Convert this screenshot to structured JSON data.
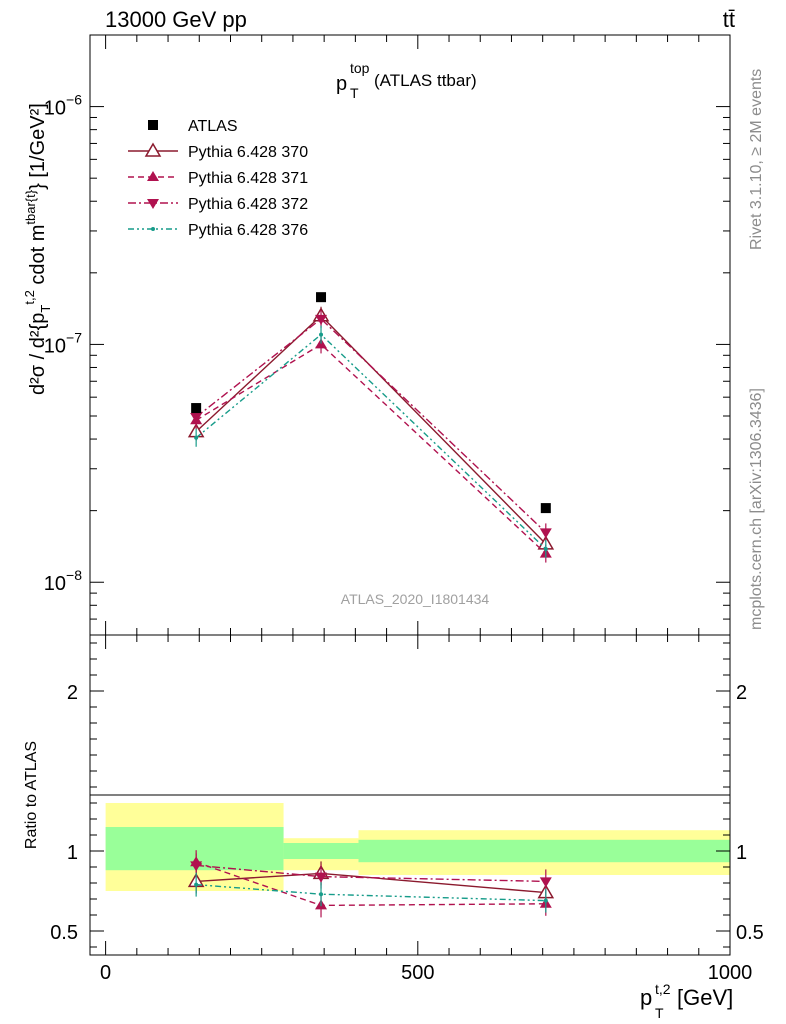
{
  "header": {
    "energy_label": "13000 GeV pp",
    "process_label": "tt̄"
  },
  "side_labels": {
    "rivet": "Rivet 3.1.10, ≥ 2M events",
    "mcplots": "mcplots.cern.ch [arXiv:1306.3436]"
  },
  "chart_data": [
    {
      "type": "scatter",
      "panel": "main",
      "title": {
        "main": "p",
        "sup": "top",
        "sub": "T",
        "suffix": " (ATLAS ttbar)"
      },
      "watermark": "ATLAS_2020_I1801434",
      "ylabel": "d²σ / d²{p_T^{t,2} cdot m^{tbar{t}}} [1/GeV²]",
      "yscale": "log",
      "ylim": [
        6e-09,
        2e-06
      ],
      "y_ticks": [
        {
          "value": 1e-08,
          "base": "10",
          "exp": "−8"
        },
        {
          "value": 1e-07,
          "base": "10",
          "exp": "−7"
        },
        {
          "value": 1e-06,
          "base": "10",
          "exp": "−6"
        }
      ],
      "xlim": [
        -25,
        1000
      ],
      "x": [
        145,
        345,
        705
      ],
      "series": [
        {
          "name": "ATLAS",
          "values": [
            5.4e-08,
            1.58e-07,
            2.05e-08
          ],
          "color": "#000000",
          "marker": "square"
        },
        {
          "name": "Pythia 6.428 370",
          "values": [
            4.3e-08,
            1.32e-07,
            1.45e-08
          ],
          "color": "#8b1a2e",
          "marker": "triangle-open",
          "dash": "solid"
        },
        {
          "name": "Pythia 6.428 371",
          "values": [
            4.8e-08,
            1e-07,
            1.32e-08
          ],
          "color": "#b0124f",
          "marker": "triangle",
          "dash": "dashed"
        },
        {
          "name": "Pythia 6.428 372",
          "values": [
            4.95e-08,
            1.28e-07,
            1.62e-08
          ],
          "color": "#b0124f",
          "marker": "triangle-down",
          "dash": "dashdot"
        },
        {
          "name": "Pythia 6.428 376",
          "values": [
            4.05e-08,
            1.1e-07,
            1.38e-08
          ],
          "color": "#179c8a",
          "marker": "dot",
          "dash": "dashdotdot"
        }
      ]
    },
    {
      "type": "scatter",
      "panel": "ratio",
      "ylabel": "Ratio to ATLAS",
      "xlabel": {
        "main": "p",
        "sup": "t,2",
        "sub": "T",
        "suffix": " [GeV]"
      },
      "xlim": [
        -25,
        1000
      ],
      "ylim": [
        0.35,
        2.35
      ],
      "x_ticks": [
        0,
        500,
        1000
      ],
      "y_ticks": [
        0.5,
        1,
        2
      ],
      "bins": [
        [
          0,
          285
        ],
        [
          285,
          405
        ],
        [
          405,
          1000
        ]
      ],
      "bands": {
        "yellow": [
          [
            0.75,
            1.3
          ],
          [
            0.88,
            1.08
          ],
          [
            0.85,
            1.13
          ]
        ],
        "green": [
          [
            0.88,
            1.15
          ],
          [
            0.95,
            1.05
          ],
          [
            0.93,
            1.07
          ]
        ]
      },
      "band_colors": {
        "yellow": "#ffff99",
        "green": "#99ff99"
      },
      "x": [
        145,
        345,
        705
      ],
      "series": [
        {
          "name": "Pythia 6.428 370",
          "values": [
            0.81,
            0.86,
            0.74
          ]
        },
        {
          "name": "Pythia 6.428 371",
          "values": [
            0.93,
            0.66,
            0.67
          ]
        },
        {
          "name": "Pythia 6.428 372",
          "values": [
            0.91,
            0.84,
            0.81
          ]
        },
        {
          "name": "Pythia 6.428 376",
          "values": [
            0.79,
            0.73,
            0.69
          ]
        }
      ]
    }
  ]
}
